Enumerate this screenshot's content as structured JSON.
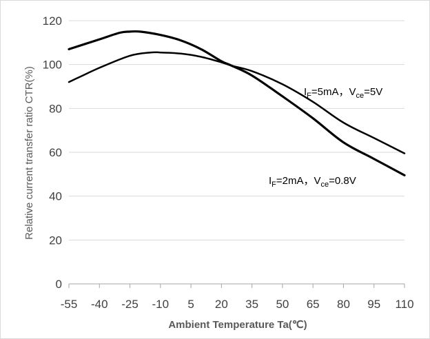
{
  "chart_data": {
    "type": "line",
    "xlabel": "Ambient Temperature Ta(℃)",
    "ylabel": "Relative current transfer ratio CTR(%)",
    "xlim": [
      -55,
      110
    ],
    "ylim": [
      0,
      120
    ],
    "x_ticks": [
      "-55",
      "-40",
      "-25",
      "-10",
      "5",
      "20",
      "35",
      "50",
      "65",
      "80",
      "95",
      "110"
    ],
    "y_ticks": [
      "0",
      "20",
      "40",
      "60",
      "80",
      "100",
      "120"
    ],
    "grid": "horizontal",
    "legend": "none",
    "series": [
      {
        "label_parts": [
          "I",
          "F",
          "=5mA，V",
          "ce",
          "=5V"
        ],
        "color": "#000000",
        "x": [
          -55,
          -40,
          -25,
          -15,
          -10,
          0,
          10,
          20,
          25,
          35,
          50,
          65,
          80,
          95,
          110
        ],
        "y": [
          92,
          98.5,
          104,
          105.5,
          105.5,
          105,
          103.5,
          101,
          99.5,
          97,
          91,
          83,
          73.5,
          66.5,
          59.5
        ]
      },
      {
        "label_parts": [
          "I",
          "F",
          "=2mA，V",
          "ce",
          "=0.8V"
        ],
        "color": "#000000",
        "x": [
          -55,
          -40,
          -30,
          -25,
          -20,
          -10,
          0,
          10,
          20,
          25,
          35,
          50,
          65,
          80,
          95,
          110
        ],
        "y": [
          107,
          111.5,
          114.5,
          115,
          115,
          113.5,
          111,
          107,
          101.5,
          99.5,
          95,
          85.5,
          75.5,
          64.5,
          57,
          49.5
        ]
      }
    ]
  }
}
